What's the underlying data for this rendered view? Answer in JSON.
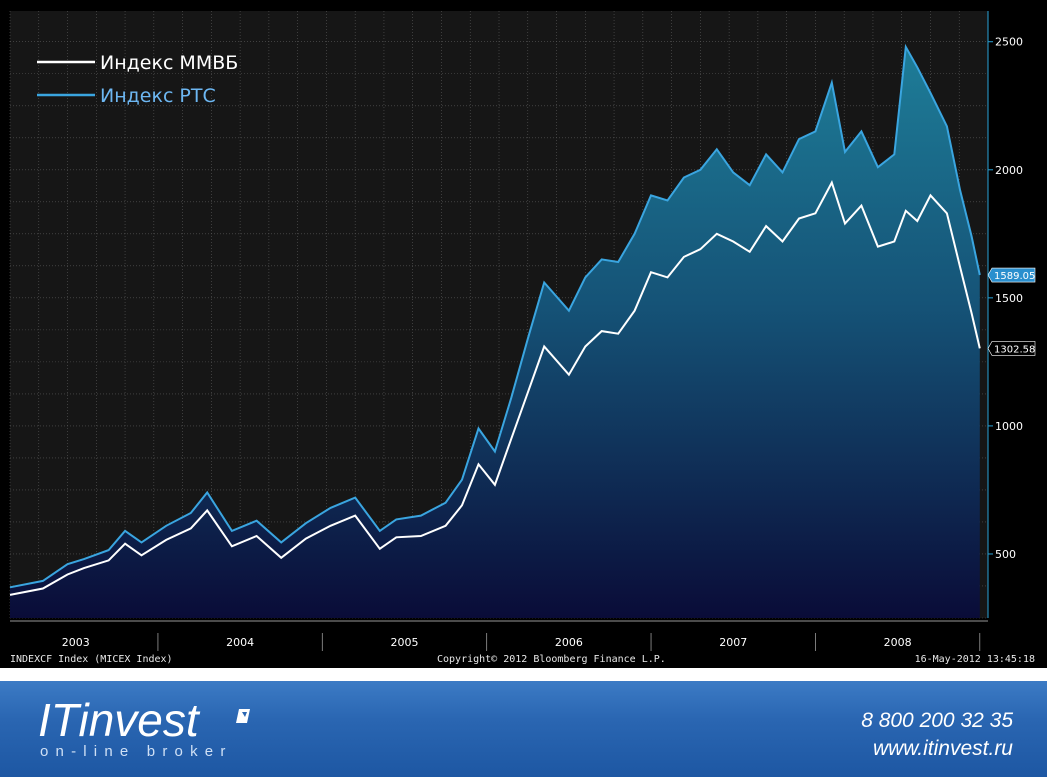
{
  "chart_data": {
    "type": "line",
    "title": "",
    "xlabel": "",
    "ylabel": "",
    "x_ticks": [
      "2003",
      "2004",
      "2005",
      "2006",
      "2007",
      "2008"
    ],
    "y_ticks": [
      "500",
      "1000",
      "1500",
      "2000",
      "2500"
    ],
    "ylim": [
      250,
      2620
    ],
    "xlim": [
      2002.6,
      2008.55
    ],
    "grid": true,
    "legend_position": "top-left",
    "series": [
      {
        "name": "Индекс ММВБ",
        "color": "#ffffff",
        "last_value_label": "1302.58",
        "x": [
          2002.6,
          2002.8,
          2002.95,
          2003.05,
          2003.2,
          2003.3,
          2003.4,
          2003.55,
          2003.7,
          2003.8,
          2003.95,
          2004.1,
          2004.25,
          2004.4,
          2004.55,
          2004.7,
          2004.85,
          2004.95,
          2005.1,
          2005.25,
          2005.35,
          2005.45,
          2005.55,
          2005.65,
          2005.75,
          2005.85,
          2006.0,
          2006.1,
          2006.2,
          2006.3,
          2006.4,
          2006.5,
          2006.6,
          2006.7,
          2006.8,
          2006.9,
          2007.0,
          2007.1,
          2007.2,
          2007.3,
          2007.4,
          2007.5,
          2007.6,
          2007.68,
          2007.78,
          2007.88,
          2007.98,
          2008.05,
          2008.12,
          2008.2,
          2008.3,
          2008.38,
          2008.45,
          2008.5
        ],
        "y": [
          340,
          365,
          420,
          445,
          475,
          540,
          495,
          555,
          600,
          670,
          530,
          570,
          485,
          560,
          610,
          650,
          520,
          565,
          570,
          610,
          690,
          850,
          770,
          950,
          1130,
          1310,
          1200,
          1310,
          1370,
          1360,
          1450,
          1600,
          1580,
          1660,
          1690,
          1750,
          1720,
          1680,
          1780,
          1720,
          1810,
          1830,
          1950,
          1790,
          1860,
          1700,
          1720,
          1840,
          1800,
          1900,
          1830,
          1620,
          1440,
          1302.58
        ]
      },
      {
        "name": "Индекс РТС",
        "color": "#3aa5e0",
        "last_value_label": "1589.05",
        "x": [
          2002.6,
          2002.8,
          2002.95,
          2003.05,
          2003.2,
          2003.3,
          2003.4,
          2003.55,
          2003.7,
          2003.8,
          2003.95,
          2004.1,
          2004.25,
          2004.4,
          2004.55,
          2004.7,
          2004.85,
          2004.95,
          2005.1,
          2005.25,
          2005.35,
          2005.45,
          2005.55,
          2005.65,
          2005.75,
          2005.85,
          2006.0,
          2006.1,
          2006.2,
          2006.3,
          2006.4,
          2006.5,
          2006.6,
          2006.7,
          2006.8,
          2006.9,
          2007.0,
          2007.1,
          2007.2,
          2007.3,
          2007.4,
          2007.5,
          2007.6,
          2007.68,
          2007.78,
          2007.88,
          2007.98,
          2008.05,
          2008.12,
          2008.2,
          2008.3,
          2008.38,
          2008.45,
          2008.5
        ],
        "y": [
          370,
          395,
          460,
          480,
          515,
          590,
          545,
          610,
          660,
          740,
          590,
          630,
          545,
          620,
          680,
          720,
          590,
          635,
          650,
          700,
          790,
          990,
          900,
          1110,
          1340,
          1560,
          1450,
          1580,
          1650,
          1640,
          1750,
          1900,
          1880,
          1970,
          2000,
          2080,
          1990,
          1940,
          2060,
          1990,
          2120,
          2150,
          2340,
          2070,
          2150,
          2010,
          2060,
          2480,
          2400,
          2300,
          2170,
          1920,
          1740,
          1589.05
        ]
      }
    ]
  },
  "footer": {
    "left": "INDEXCF Index (MICEX Index)",
    "center": "Copyright© 2012 Bloomberg Finance L.P.",
    "right": "16-May-2012 13:45:18"
  },
  "brand": {
    "logo": "ITinvest",
    "tagline": "on-line broker",
    "phone": "8 800 200 32 35",
    "site": "www.itinvest.ru"
  },
  "colors": {
    "background": "#000000",
    "plot_bg": "#141414",
    "grid": "#555555",
    "axis_accent": "#2aa3d8",
    "fill_top": "#1a6a86",
    "fill_bottom": "#0b0d3a",
    "brand_band": "#2a66b2"
  }
}
